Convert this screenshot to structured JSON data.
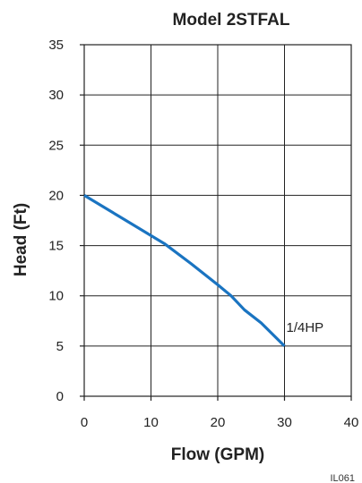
{
  "chart_data": {
    "type": "line",
    "title": "Model 2STFAL",
    "xlabel": "Flow (GPM)",
    "ylabel": "Head (Ft)",
    "xlim": [
      0,
      40
    ],
    "ylim": [
      0,
      35
    ],
    "x_ticks": [
      0,
      10,
      20,
      30,
      40
    ],
    "y_ticks": [
      0,
      5,
      10,
      15,
      20,
      25,
      30,
      35
    ],
    "grid": true,
    "series": [
      {
        "name": "1/4HP",
        "color": "#1a74c1",
        "points": [
          [
            0,
            20
          ],
          [
            5,
            18
          ],
          [
            10,
            16
          ],
          [
            12,
            15.2
          ],
          [
            16,
            13.2
          ],
          [
            20,
            11.1
          ],
          [
            22,
            10
          ],
          [
            24,
            8.6
          ],
          [
            26.5,
            7.3
          ],
          [
            30,
            5
          ]
        ]
      }
    ],
    "annotations": [
      "IL061"
    ]
  },
  "colors": {
    "line": "#1a74c1",
    "axis": "#222222",
    "text": "#222222"
  }
}
